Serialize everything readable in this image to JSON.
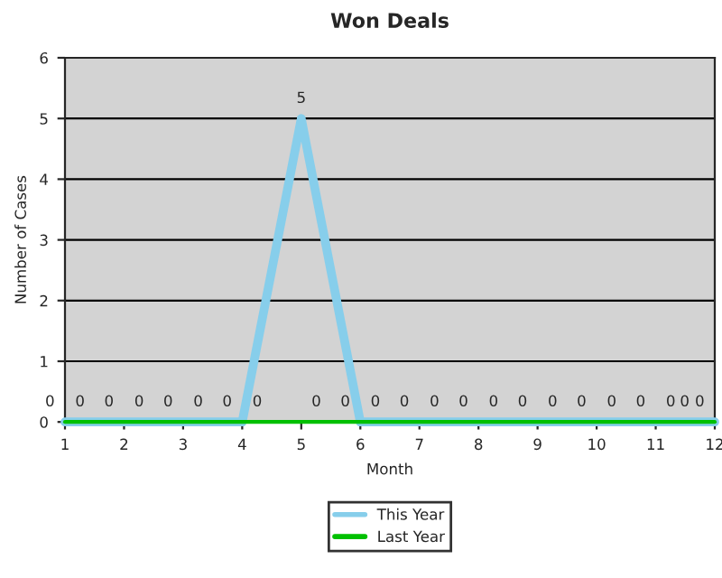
{
  "chart_data": {
    "type": "line",
    "title": "Won Deals",
    "xlabel": "Month",
    "ylabel": "Number of Cases",
    "x": [
      1,
      2,
      3,
      4,
      5,
      6,
      7,
      8,
      9,
      10,
      11,
      12
    ],
    "series": [
      {
        "name": "This Year",
        "color": "#87ceeb",
        "values": [
          0,
          0,
          0,
          0,
          5,
          0,
          0,
          0,
          0,
          0,
          0,
          0
        ]
      },
      {
        "name": "Last Year",
        "color": "#00c000",
        "values": [
          0,
          0,
          0,
          0,
          0,
          0,
          0,
          0,
          0,
          0,
          0,
          0
        ]
      }
    ],
    "xlim": [
      1,
      12
    ],
    "xticks": [
      1,
      2,
      3,
      4,
      5,
      6,
      7,
      8,
      9,
      10,
      11,
      12
    ],
    "ylim": [
      0,
      6
    ],
    "yticks": [
      0,
      1,
      2,
      3,
      4,
      5,
      6
    ],
    "grid": "y",
    "legend": "bottom",
    "data_labels": true,
    "marker": "none",
    "line_style": "solid"
  }
}
